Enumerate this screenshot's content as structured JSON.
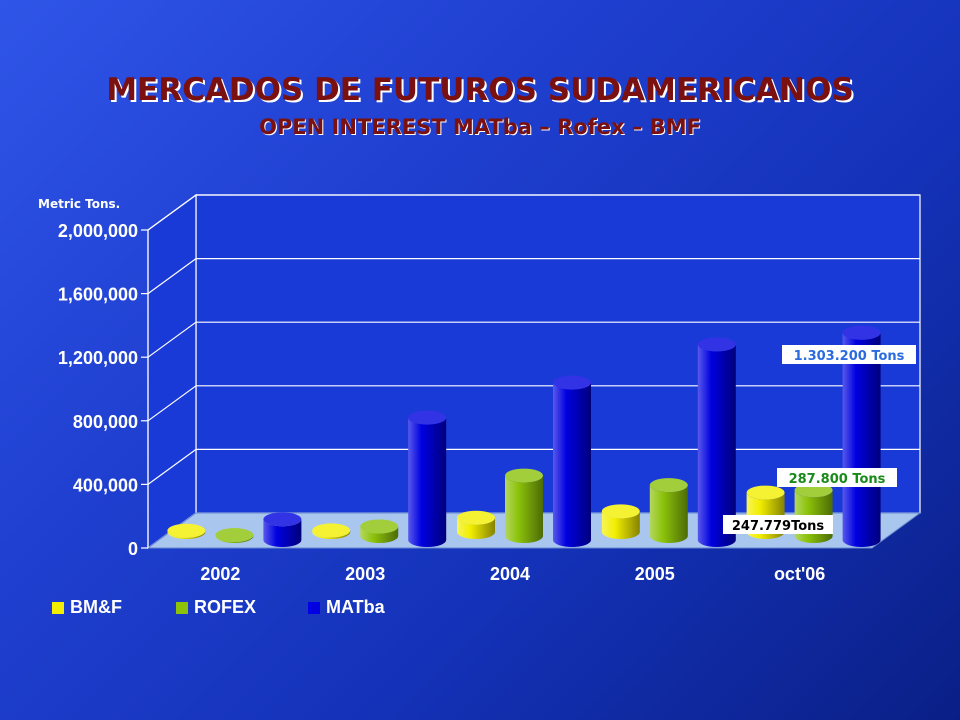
{
  "title": "MERCADOS DE FUTUROS SUDAMERICANOS",
  "subtitle": "OPEN INTEREST MATba – Rofex – BMF",
  "chart_data": {
    "type": "bar",
    "ylabel": "Metric Tons.",
    "ylim": [
      0,
      2000000
    ],
    "yticks": [
      "0",
      "400,000",
      "800,000",
      "1,200,000",
      "1,600,000",
      "2,000,000"
    ],
    "ytick_values": [
      0,
      400000,
      800000,
      1200000,
      1600000,
      2000000
    ],
    "categories": [
      "2002",
      "2003",
      "2004",
      "2005",
      "oct'06"
    ],
    "series": [
      {
        "name": "BM&F",
        "color": "#f2ee00",
        "values": [
          8000,
          10000,
          90000,
          130000,
          247779
        ]
      },
      {
        "name": "ROFEX",
        "color": "#8cc20a",
        "values": [
          6000,
          60000,
          380000,
          320000,
          287800
        ]
      },
      {
        "name": "MATba",
        "color": "#0000e0",
        "values": [
          130000,
          770000,
          990000,
          1230000,
          1303200
        ]
      }
    ],
    "annotations": [
      {
        "text": "1.303.200 Tons",
        "series": "MATba",
        "color": "#2a6be0"
      },
      {
        "text": "287.800 Tons",
        "series": "ROFEX",
        "color": "#1a8a1a"
      },
      {
        "text": "247.779Tons",
        "series": "BM&F",
        "color": "#000000"
      }
    ],
    "grid": true,
    "legend": "bottom-left"
  }
}
